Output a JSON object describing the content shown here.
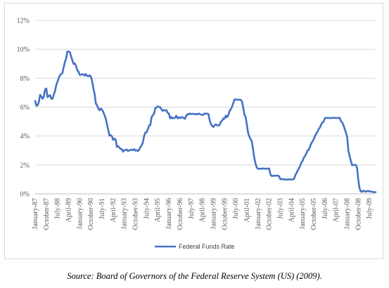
{
  "chart_data": {
    "type": "line",
    "title": "",
    "xlabel": "",
    "ylabel": "",
    "ylim": [
      0,
      12
    ],
    "y_ticks": [
      "0%",
      "2%",
      "4%",
      "6%",
      "8%",
      "10%",
      "12%"
    ],
    "x_ticks": [
      "January-87",
      "October-87",
      "July-88",
      "April-89",
      "January-90",
      "October-90",
      "July-91",
      "April-92",
      "January-93",
      "October-93",
      "July-94",
      "April-95",
      "January-96",
      "October-96",
      "July-97",
      "April-98",
      "January-99",
      "October-99",
      "July-00",
      "April-01",
      "January-02",
      "October-02",
      "July-03",
      "April-04",
      "January-05",
      "October-05",
      "July-06",
      "April-07",
      "January-08",
      "October-08",
      "July-09"
    ],
    "grid": "horizontal",
    "legend_position": "bottom",
    "line_color": "#4472c4",
    "series": [
      {
        "name": "Federal Funds Rate",
        "x": [
          "1987-01",
          "1987-02",
          "1987-03",
          "1987-04",
          "1987-05",
          "1987-06",
          "1987-07",
          "1987-08",
          "1987-09",
          "1987-10",
          "1987-11",
          "1987-12",
          "1988-01",
          "1988-02",
          "1988-03",
          "1988-04",
          "1988-05",
          "1988-06",
          "1988-07",
          "1988-08",
          "1988-09",
          "1988-10",
          "1988-11",
          "1988-12",
          "1989-01",
          "1989-02",
          "1989-03",
          "1989-04",
          "1989-05",
          "1989-06",
          "1989-07",
          "1989-08",
          "1989-09",
          "1989-10",
          "1989-11",
          "1989-12",
          "1990-01",
          "1990-02",
          "1990-03",
          "1990-04",
          "1990-05",
          "1990-06",
          "1990-07",
          "1990-08",
          "1990-09",
          "1990-10",
          "1990-11",
          "1990-12",
          "1991-01",
          "1991-02",
          "1991-03",
          "1991-04",
          "1991-05",
          "1991-06",
          "1991-07",
          "1991-08",
          "1991-09",
          "1991-10",
          "1991-11",
          "1991-12",
          "1992-01",
          "1992-02",
          "1992-03",
          "1992-04",
          "1992-05",
          "1992-06",
          "1992-07",
          "1992-08",
          "1992-09",
          "1992-10",
          "1992-11",
          "1992-12",
          "1993-01",
          "1993-02",
          "1993-03",
          "1993-04",
          "1993-05",
          "1993-06",
          "1993-07",
          "1993-08",
          "1993-09",
          "1993-10",
          "1993-11",
          "1993-12",
          "1994-01",
          "1994-02",
          "1994-03",
          "1994-04",
          "1994-05",
          "1994-06",
          "1994-07",
          "1994-08",
          "1994-09",
          "1994-10",
          "1994-11",
          "1994-12",
          "1995-01",
          "1995-02",
          "1995-03",
          "1995-04",
          "1995-05",
          "1995-06",
          "1995-07",
          "1995-08",
          "1995-09",
          "1995-10",
          "1995-11",
          "1995-12",
          "1996-01",
          "1996-02",
          "1996-03",
          "1996-04",
          "1996-05",
          "1996-06",
          "1996-07",
          "1996-08",
          "1996-09",
          "1996-10",
          "1996-11",
          "1996-12",
          "1997-01",
          "1997-02",
          "1997-03",
          "1997-04",
          "1997-05",
          "1997-06",
          "1997-07",
          "1997-08",
          "1997-09",
          "1997-10",
          "1997-11",
          "1997-12",
          "1998-01",
          "1998-02",
          "1998-03",
          "1998-04",
          "1998-05",
          "1998-06",
          "1998-07",
          "1998-08",
          "1998-09",
          "1998-10",
          "1998-11",
          "1998-12",
          "1999-01",
          "1999-02",
          "1999-03",
          "1999-04",
          "1999-05",
          "1999-06",
          "1999-07",
          "1999-08",
          "1999-09",
          "1999-10",
          "1999-11",
          "1999-12",
          "2000-01",
          "2000-02",
          "2000-03",
          "2000-04",
          "2000-05",
          "2000-06",
          "2000-07",
          "2000-08",
          "2000-09",
          "2000-10",
          "2000-11",
          "2000-12",
          "2001-01",
          "2001-02",
          "2001-03",
          "2001-04",
          "2001-05",
          "2001-06",
          "2001-07",
          "2001-08",
          "2001-09",
          "2001-10",
          "2001-11",
          "2001-12",
          "2002-01",
          "2002-02",
          "2002-03",
          "2002-04",
          "2002-05",
          "2002-06",
          "2002-07",
          "2002-08",
          "2002-09",
          "2002-10",
          "2002-11",
          "2002-12",
          "2003-01",
          "2003-02",
          "2003-03",
          "2003-04",
          "2003-05",
          "2003-06",
          "2003-07",
          "2003-08",
          "2003-09",
          "2003-10",
          "2003-11",
          "2003-12",
          "2004-01",
          "2004-02",
          "2004-03",
          "2004-04",
          "2004-05",
          "2004-06",
          "2004-07",
          "2004-08",
          "2004-09",
          "2004-10",
          "2004-11",
          "2004-12",
          "2005-01",
          "2005-02",
          "2005-03",
          "2005-04",
          "2005-05",
          "2005-06",
          "2005-07",
          "2005-08",
          "2005-09",
          "2005-10",
          "2005-11",
          "2005-12",
          "2006-01",
          "2006-02",
          "2006-03",
          "2006-04",
          "2006-05",
          "2006-06",
          "2006-07",
          "2006-08",
          "2006-09",
          "2006-10",
          "2006-11",
          "2006-12",
          "2007-01",
          "2007-02",
          "2007-03",
          "2007-04",
          "2007-05",
          "2007-06",
          "2007-07",
          "2007-08",
          "2007-09",
          "2007-10",
          "2007-11",
          "2007-12",
          "2008-01",
          "2008-02",
          "2008-03",
          "2008-04",
          "2008-05",
          "2008-06",
          "2008-07",
          "2008-08",
          "2008-09",
          "2008-10",
          "2008-11",
          "2008-12",
          "2009-01",
          "2009-02",
          "2009-03",
          "2009-04",
          "2009-05",
          "2009-06",
          "2009-07",
          "2009-08",
          "2009-09",
          "2009-10",
          "2009-11",
          "2009-12"
        ],
        "values": [
          6.43,
          6.1,
          6.13,
          6.37,
          6.85,
          6.73,
          6.58,
          6.73,
          7.22,
          7.29,
          6.69,
          6.77,
          6.83,
          6.58,
          6.58,
          6.87,
          7.09,
          7.51,
          7.75,
          8.01,
          8.19,
          8.3,
          8.35,
          8.76,
          9.12,
          9.36,
          9.85,
          9.84,
          9.81,
          9.53,
          9.24,
          8.99,
          9.02,
          8.84,
          8.55,
          8.45,
          8.23,
          8.24,
          8.28,
          8.26,
          8.18,
          8.29,
          8.15,
          8.13,
          8.2,
          8.11,
          7.81,
          7.31,
          6.91,
          6.25,
          6.12,
          5.91,
          5.78,
          5.9,
          5.82,
          5.66,
          5.45,
          5.21,
          4.81,
          4.43,
          4.03,
          4.06,
          3.98,
          3.73,
          3.82,
          3.76,
          3.25,
          3.3,
          3.22,
          3.1,
          3.09,
          2.92,
          3.02,
          3.03,
          3.07,
          2.96,
          3.0,
          3.04,
          3.06,
          3.03,
          3.09,
          2.99,
          3.02,
          2.96,
          3.05,
          3.25,
          3.34,
          3.56,
          4.01,
          4.25,
          4.26,
          4.47,
          4.73,
          4.76,
          5.29,
          5.45,
          5.53,
          5.92,
          5.98,
          6.05,
          6.01,
          6.0,
          5.85,
          5.74,
          5.8,
          5.76,
          5.8,
          5.6,
          5.56,
          5.22,
          5.31,
          5.22,
          5.24,
          5.27,
          5.4,
          5.22,
          5.3,
          5.24,
          5.31,
          5.29,
          5.25,
          5.19,
          5.39,
          5.51,
          5.5,
          5.56,
          5.52,
          5.54,
          5.54,
          5.5,
          5.52,
          5.5,
          5.56,
          5.51,
          5.49,
          5.45,
          5.49,
          5.56,
          5.54,
          5.55,
          5.51,
          5.07,
          4.83,
          4.68,
          4.63,
          4.76,
          4.81,
          4.74,
          4.74,
          4.76,
          4.99,
          5.07,
          5.22,
          5.2,
          5.42,
          5.3,
          5.45,
          5.73,
          5.85,
          6.02,
          6.27,
          6.53,
          6.54,
          6.5,
          6.52,
          6.51,
          6.51,
          6.4,
          5.98,
          5.49,
          5.31,
          4.8,
          4.21,
          3.97,
          3.77,
          3.65,
          3.07,
          2.49,
          2.09,
          1.82,
          1.73,
          1.74,
          1.73,
          1.75,
          1.75,
          1.75,
          1.73,
          1.74,
          1.75,
          1.75,
          1.34,
          1.24,
          1.24,
          1.26,
          1.25,
          1.26,
          1.26,
          1.22,
          1.01,
          1.03,
          1.01,
          1.01,
          1.0,
          0.98,
          1.0,
          1.0,
          1.0,
          1.0,
          1.0,
          1.03,
          1.26,
          1.43,
          1.61,
          1.76,
          1.93,
          2.16,
          2.28,
          2.5,
          2.63,
          2.79,
          3.0,
          3.04,
          3.26,
          3.5,
          3.62,
          3.78,
          4.0,
          4.16,
          4.29,
          4.49,
          4.59,
          4.79,
          4.94,
          4.99,
          5.24,
          5.25,
          5.25,
          5.25,
          5.25,
          5.24,
          5.25,
          5.26,
          5.26,
          5.25,
          5.25,
          5.25,
          5.26,
          5.02,
          4.94,
          4.76,
          4.49,
          4.24,
          3.94,
          2.98,
          2.61,
          2.28,
          1.98,
          2.0,
          2.01,
          2.0,
          1.81,
          0.97,
          0.39,
          0.16,
          0.15,
          0.22,
          0.18,
          0.15,
          0.18,
          0.21,
          0.16,
          0.16,
          0.15,
          0.12,
          0.12,
          0.12
        ]
      }
    ]
  },
  "caption": "Source: Board of Governors of the Federal Reserve System (US) (2009)."
}
